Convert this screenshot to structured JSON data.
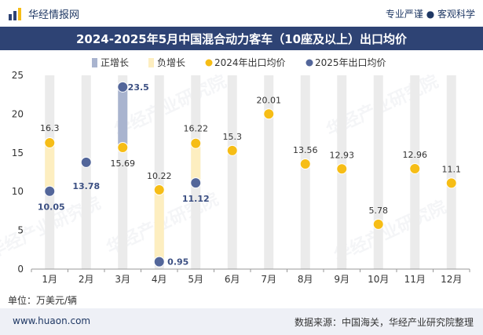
{
  "header": {
    "brand": "华经情报网",
    "tagline": "专业严谨 ● 客观科学"
  },
  "chart_data": {
    "type": "bar",
    "title": "2024-2025年5月中国混合动力客车（10座及以上）出口均价",
    "categories": [
      "1月",
      "2月",
      "3月",
      "4月",
      "5月",
      "6月",
      "7月",
      "8月",
      "9月",
      "10月",
      "11月",
      "12月"
    ],
    "series": [
      {
        "name": "2024年出口均价",
        "values": [
          16.3,
          null,
          15.69,
          10.22,
          16.22,
          15.3,
          20.01,
          13.56,
          12.93,
          5.78,
          12.96,
          11.1
        ]
      },
      {
        "name": "2025年出口均价",
        "values": [
          10.05,
          13.78,
          23.5,
          0.95,
          11.12,
          null,
          null,
          null,
          null,
          null,
          null,
          null
        ]
      }
    ],
    "value_labels": [
      [
        "16.3",
        "10.05"
      ],
      [
        null,
        "13.78"
      ],
      [
        "15.69",
        "23.5"
      ],
      [
        "10.22",
        "0.95"
      ],
      [
        "16.22",
        "11.12"
      ],
      [
        "15.3",
        null
      ],
      [
        "20.01",
        null
      ],
      [
        "13.56",
        null
      ],
      [
        "12.93",
        null
      ],
      [
        "5.78",
        null
      ],
      [
        "12.96",
        null
      ],
      [
        "11.1",
        null
      ]
    ],
    "legend": [
      "正增长",
      "负增长",
      "2024年出口均价",
      "2025年出口均价"
    ],
    "yticks": [
      "0",
      "5",
      "10",
      "15",
      "20",
      "25"
    ],
    "ylim": [
      0,
      25
    ],
    "colors": {
      "positive": "#a9b4cf",
      "negative": "#fdeec0",
      "s2024": "#f6bd16",
      "s2025": "#53669a",
      "column": "#ebebeb",
      "label2024": "#333333",
      "label2025": "#3b4f82"
    }
  },
  "unit": "单位：万美元/辆",
  "watermark": "华经产业研究院",
  "footer": {
    "url": "www.huaon.com",
    "source": "数据来源：中国海关，华经产业研究院整理"
  }
}
